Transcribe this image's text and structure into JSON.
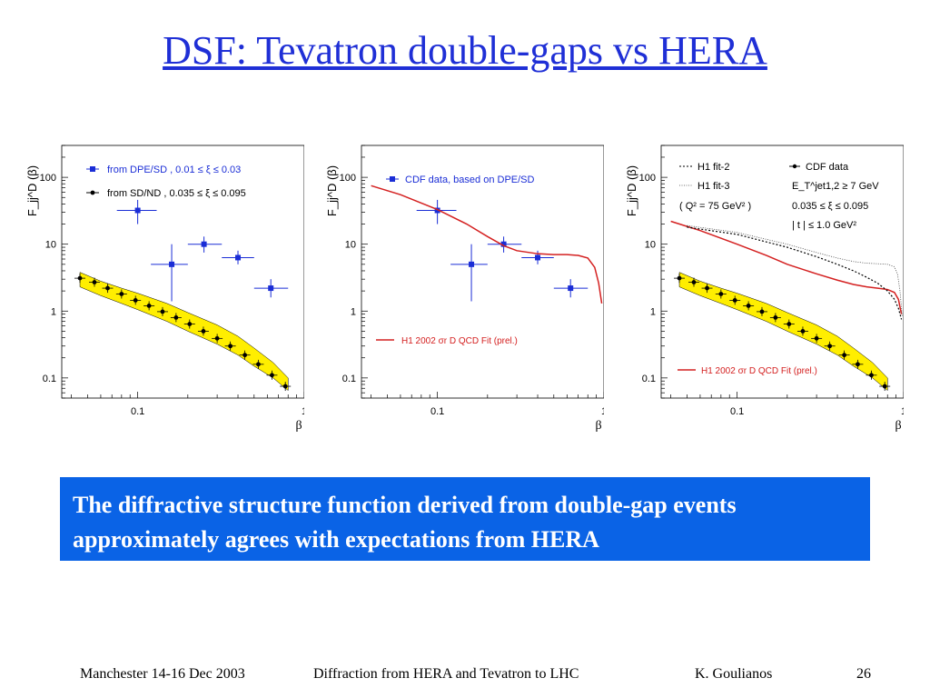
{
  "slide": {
    "title": "DSF: Tevatron double-gaps vs HERA",
    "summary": "The diffractive structure function derived from double-gap events approximately agrees with expectations from HERA"
  },
  "footer": {
    "venue": "Manchester 14-16 Dec 2003",
    "talk": "Diffraction from HERA and Tevatron to LHC",
    "author": "K. Goulianos",
    "page": "26"
  },
  "colors": {
    "title": "#1f2fd6",
    "box": "#0a63e6",
    "blue_points": "#1a2dd6",
    "black_points": "#000000",
    "band": "#ffee00",
    "fit": "#d42020"
  },
  "chart_data": [
    {
      "type": "scatter",
      "ylabel": "F_jj^D (β)",
      "xlabel": "β",
      "x_scale": "log",
      "y_scale": "log",
      "xlim": [
        0.035,
        1
      ],
      "ylim": [
        0.05,
        300
      ],
      "x_ticks": [
        "0.1",
        "1"
      ],
      "y_ticks": [
        "0.1",
        "1",
        "10",
        "100"
      ],
      "legend": [
        {
          "marker": "blue",
          "text": "from DPE/SD ,  0.01 ≤ ξ ≤ 0.03"
        },
        {
          "marker": "black",
          "text": "from  SD/ND ,  0.035 ≤ ξ ≤ 0.095"
        }
      ],
      "series": [
        {
          "kind": "blue",
          "x": [
            0.1,
            0.16,
            0.25,
            0.4,
            0.63
          ],
          "y": [
            32,
            5,
            10,
            6.3,
            2.2
          ],
          "ylo": [
            20,
            1.4,
            7.5,
            5,
            1.6
          ],
          "yhi": [
            46,
            10,
            13,
            8,
            3
          ],
          "xlo": [
            0.075,
            0.12,
            0.2,
            0.32,
            0.5
          ],
          "xhi": [
            0.13,
            0.2,
            0.32,
            0.5,
            0.8
          ]
        },
        {
          "kind": "black",
          "x": [
            0.045,
            0.055,
            0.066,
            0.08,
            0.097,
            0.117,
            0.141,
            0.17,
            0.205,
            0.248,
            0.3,
            0.36,
            0.44,
            0.53,
            0.64,
            0.77
          ],
          "y": [
            3.1,
            2.7,
            2.2,
            1.8,
            1.45,
            1.2,
            0.98,
            0.8,
            0.64,
            0.5,
            0.39,
            0.3,
            0.22,
            0.16,
            0.11,
            0.075
          ]
        }
      ],
      "band": {
        "x": [
          0.045,
          0.06,
          0.08,
          0.1,
          0.15,
          0.2,
          0.3,
          0.4,
          0.5,
          0.65,
          0.8
        ],
        "ylo": [
          2.3,
          1.7,
          1.3,
          1.05,
          0.7,
          0.5,
          0.32,
          0.22,
          0.15,
          0.1,
          0.065
        ],
        "yhi": [
          3.8,
          2.8,
          2.2,
          1.85,
          1.3,
          0.95,
          0.62,
          0.42,
          0.28,
          0.17,
          0.1
        ]
      }
    },
    {
      "type": "line",
      "ylabel": "F_jj^D (β)",
      "xlabel": "β",
      "x_scale": "log",
      "y_scale": "log",
      "xlim": [
        0.035,
        1
      ],
      "ylim": [
        0.05,
        300
      ],
      "x_ticks": [
        "0.1",
        "1"
      ],
      "y_ticks": [
        "0.1",
        "1",
        "10",
        "100"
      ],
      "legend": [
        {
          "marker": "blue",
          "text": "CDF data, based on DPE/SD"
        },
        {
          "marker": "fit",
          "text": "H1 2002 σr D QCD Fit (prel.)"
        }
      ],
      "series": [
        {
          "kind": "blue",
          "x": [
            0.1,
            0.16,
            0.25,
            0.4,
            0.63
          ],
          "y": [
            32,
            5,
            10,
            6.3,
            2.2
          ],
          "ylo": [
            20,
            1.4,
            7.5,
            5,
            1.6
          ],
          "yhi": [
            46,
            10,
            13,
            8,
            3
          ],
          "xlo": [
            0.075,
            0.12,
            0.2,
            0.32,
            0.5
          ],
          "xhi": [
            0.13,
            0.2,
            0.32,
            0.5,
            0.8
          ]
        },
        {
          "kind": "fit",
          "x": [
            0.04,
            0.06,
            0.1,
            0.15,
            0.2,
            0.25,
            0.3,
            0.4,
            0.5,
            0.6,
            0.7,
            0.8,
            0.88,
            0.93,
            0.97
          ],
          "y": [
            75,
            55,
            33,
            20,
            13,
            9.5,
            8,
            7.2,
            7,
            7,
            6.8,
            6.2,
            4.5,
            2.6,
            1.3
          ]
        }
      ]
    },
    {
      "type": "line",
      "ylabel": "F_jj^D (β)",
      "xlabel": "β",
      "x_scale": "log",
      "y_scale": "log",
      "xlim": [
        0.035,
        1
      ],
      "ylim": [
        0.05,
        300
      ],
      "x_ticks": [
        "0.1",
        "1"
      ],
      "y_ticks": [
        "0.1",
        "1",
        "10",
        "100"
      ],
      "legend": [
        {
          "marker": "h1fit2",
          "text": "H1 fit-2"
        },
        {
          "marker": "h1fit3",
          "text": "H1 fit-3"
        },
        {
          "marker": "none",
          "text": "( Q² = 75 GeV² )"
        },
        {
          "marker": "black",
          "text": "CDF data"
        },
        {
          "marker": "none",
          "text": "E_T^jet1,2 ≥ 7 GeV"
        },
        {
          "marker": "none",
          "text": "0.035 ≤ ξ ≤ 0.095"
        },
        {
          "marker": "none",
          "text": "| t | ≤ 1.0 GeV²"
        },
        {
          "marker": "fit",
          "text": "H1 2002 σr D QCD Fit (prel.)"
        }
      ],
      "series": [
        {
          "kind": "black",
          "x": [
            0.045,
            0.055,
            0.066,
            0.08,
            0.097,
            0.117,
            0.141,
            0.17,
            0.205,
            0.248,
            0.3,
            0.36,
            0.44,
            0.53,
            0.64,
            0.77
          ],
          "y": [
            3.1,
            2.7,
            2.2,
            1.8,
            1.45,
            1.2,
            0.98,
            0.8,
            0.64,
            0.5,
            0.39,
            0.3,
            0.22,
            0.16,
            0.11,
            0.075
          ]
        },
        {
          "kind": "fit",
          "x": [
            0.04,
            0.06,
            0.1,
            0.15,
            0.2,
            0.3,
            0.4,
            0.5,
            0.6,
            0.7,
            0.8,
            0.88,
            0.93,
            0.97
          ],
          "y": [
            22,
            16,
            10,
            6.8,
            5,
            3.6,
            2.9,
            2.5,
            2.3,
            2.2,
            2.1,
            1.9,
            1.5,
            0.9
          ]
        },
        {
          "kind": "h1fit2",
          "x": [
            0.05,
            0.1,
            0.2,
            0.3,
            0.4,
            0.5,
            0.6,
            0.7,
            0.8,
            0.88,
            0.93,
            0.97
          ],
          "y": [
            18,
            14,
            9,
            6.5,
            5,
            4,
            3.2,
            2.6,
            2,
            1.5,
            1.1,
            0.75
          ]
        },
        {
          "kind": "h1fit3",
          "x": [
            0.05,
            0.1,
            0.2,
            0.3,
            0.4,
            0.5,
            0.6,
            0.7,
            0.8,
            0.88,
            0.92,
            0.95,
            0.98
          ],
          "y": [
            19,
            15,
            10,
            7.5,
            6.2,
            5.5,
            5.2,
            5.1,
            5,
            4.6,
            3.5,
            2,
            0.85
          ]
        }
      ],
      "band": {
        "x": [
          0.045,
          0.06,
          0.08,
          0.1,
          0.15,
          0.2,
          0.3,
          0.4,
          0.5,
          0.65,
          0.8
        ],
        "ylo": [
          2.3,
          1.7,
          1.3,
          1.05,
          0.7,
          0.5,
          0.32,
          0.22,
          0.15,
          0.1,
          0.065
        ],
        "yhi": [
          3.8,
          2.8,
          2.2,
          1.85,
          1.3,
          0.95,
          0.62,
          0.42,
          0.28,
          0.17,
          0.1
        ]
      }
    }
  ]
}
